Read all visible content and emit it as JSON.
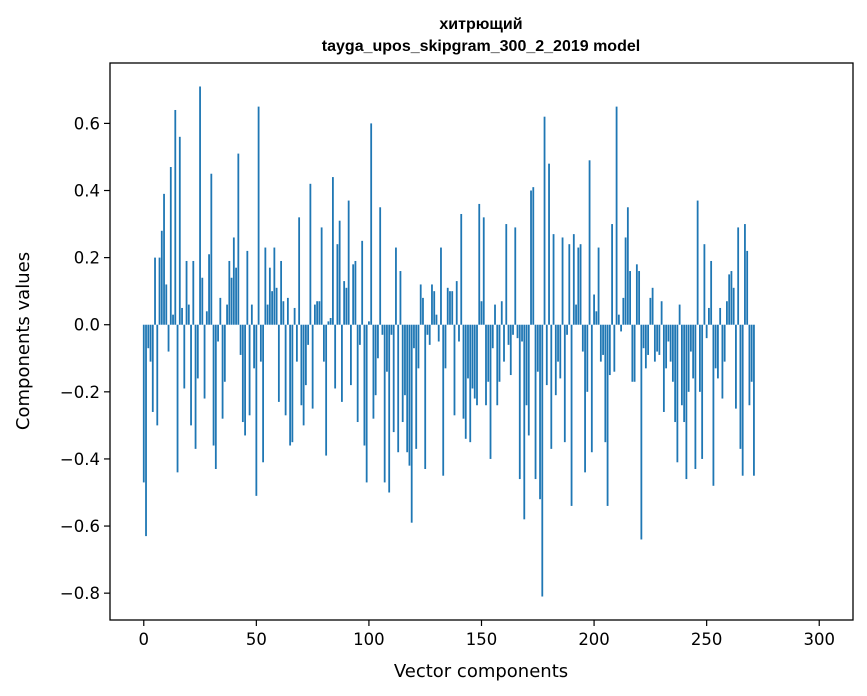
{
  "chart_data": {
    "type": "bar",
    "title": "хитрющий",
    "subtitle": "tayga_upos_skipgram_300_2_2019 model",
    "xlabel": "Vector components",
    "ylabel": "Components values",
    "xlim": [
      -15,
      315
    ],
    "ylim": [
      -0.88,
      0.78
    ],
    "xticks": [
      0,
      50,
      100,
      150,
      200,
      250,
      300
    ],
    "xtick_labels": [
      "0",
      "50",
      "100",
      "150",
      "200",
      "250",
      "300"
    ],
    "yticks": [
      0.6,
      0.4,
      0.2,
      0.0,
      -0.2,
      -0.4,
      -0.6,
      -0.8
    ],
    "ytick_labels": [
      "0.6",
      "0.4",
      "0.2",
      "0.0",
      "−0.2",
      "−0.4",
      "−0.6",
      "−0.8"
    ],
    "grid": false,
    "bar_color": "#1f77b4",
    "values": [
      -0.47,
      -0.63,
      -0.07,
      -0.11,
      -0.26,
      0.2,
      -0.3,
      0.2,
      0.28,
      0.39,
      0.12,
      -0.08,
      0.47,
      0.03,
      0.64,
      -0.44,
      0.56,
      0.05,
      -0.19,
      0.19,
      0.06,
      -0.3,
      0.19,
      -0.37,
      -0.16,
      0.71,
      0.14,
      -0.22,
      0.04,
      0.21,
      0.45,
      -0.36,
      -0.43,
      -0.05,
      0.08,
      -0.28,
      -0.17,
      0.06,
      0.19,
      0.14,
      0.26,
      0.17,
      0.51,
      -0.09,
      -0.29,
      -0.33,
      0.22,
      -0.27,
      0.06,
      -0.13,
      -0.51,
      0.65,
      -0.11,
      -0.41,
      0.23,
      0.06,
      0.17,
      0.1,
      0.23,
      0.11,
      -0.23,
      0.19,
      0.07,
      -0.27,
      0.08,
      -0.36,
      -0.35,
      0.05,
      -0.11,
      0.32,
      -0.24,
      -0.3,
      -0.18,
      -0.06,
      0.42,
      -0.25,
      0.06,
      0.07,
      0.07,
      0.29,
      -0.11,
      -0.39,
      0.01,
      0.02,
      0.44,
      -0.19,
      0.24,
      0.31,
      -0.23,
      0.13,
      0.11,
      0.37,
      -0.18,
      0.18,
      0.19,
      -0.29,
      -0.06,
      0.25,
      -0.36,
      -0.47,
      0.01,
      0.6,
      -0.28,
      -0.21,
      -0.1,
      0.35,
      -0.03,
      -0.47,
      -0.14,
      -0.5,
      -0.03,
      -0.32,
      0.23,
      -0.38,
      0.16,
      -0.29,
      -0.21,
      -0.38,
      -0.42,
      -0.59,
      -0.07,
      -0.37,
      -0.13,
      0.12,
      0.08,
      -0.43,
      -0.03,
      -0.06,
      0.12,
      0.1,
      0.03,
      -0.05,
      0.23,
      -0.45,
      -0.13,
      0.11,
      0.1,
      0.1,
      -0.27,
      0.13,
      -0.05,
      0.33,
      -0.28,
      -0.34,
      -0.16,
      -0.35,
      -0.19,
      -0.22,
      -0.24,
      0.36,
      0.07,
      0.32,
      -0.24,
      -0.17,
      -0.4,
      -0.07,
      0.06,
      -0.24,
      -0.17,
      0.07,
      -0.11,
      0.3,
      -0.06,
      -0.15,
      -0.03,
      0.29,
      -0.04,
      -0.46,
      -0.05,
      -0.58,
      -0.24,
      -0.33,
      0.4,
      0.41,
      -0.46,
      -0.14,
      -0.52,
      -0.81,
      0.62,
      -0.18,
      0.48,
      -0.37,
      0.27,
      -0.21,
      -0.11,
      -0.16,
      0.26,
      -0.35,
      -0.03,
      0.24,
      -0.54,
      0.27,
      0.06,
      0.23,
      0.24,
      -0.08,
      -0.44,
      -0.2,
      0.49,
      -0.38,
      0.09,
      0.04,
      0.23,
      -0.11,
      -0.09,
      -0.35,
      -0.54,
      -0.15,
      0.3,
      -0.14,
      0.65,
      0.03,
      -0.02,
      0.08,
      0.26,
      0.35,
      0.16,
      -0.17,
      -0.17,
      0.18,
      0.16,
      -0.64,
      -0.07,
      -0.13,
      -0.09,
      0.08,
      0.11,
      -0.11,
      -0.08,
      -0.09,
      0.07,
      -0.26,
      -0.13,
      -0.05,
      -0.11,
      -0.17,
      -0.29,
      -0.41,
      0.06,
      -0.24,
      -0.29,
      -0.46,
      -0.2,
      -0.08,
      -0.16,
      -0.43,
      0.37,
      -0.2,
      -0.4,
      0.24,
      -0.04,
      0.05,
      0.19,
      -0.48,
      -0.13,
      -0.16,
      0.05,
      -0.22,
      -0.11,
      0.07,
      0.15,
      0.16,
      0.11,
      -0.25,
      0.29,
      -0.37,
      -0.45,
      0.3,
      0.22,
      -0.24,
      -0.17,
      -0.45
    ]
  }
}
